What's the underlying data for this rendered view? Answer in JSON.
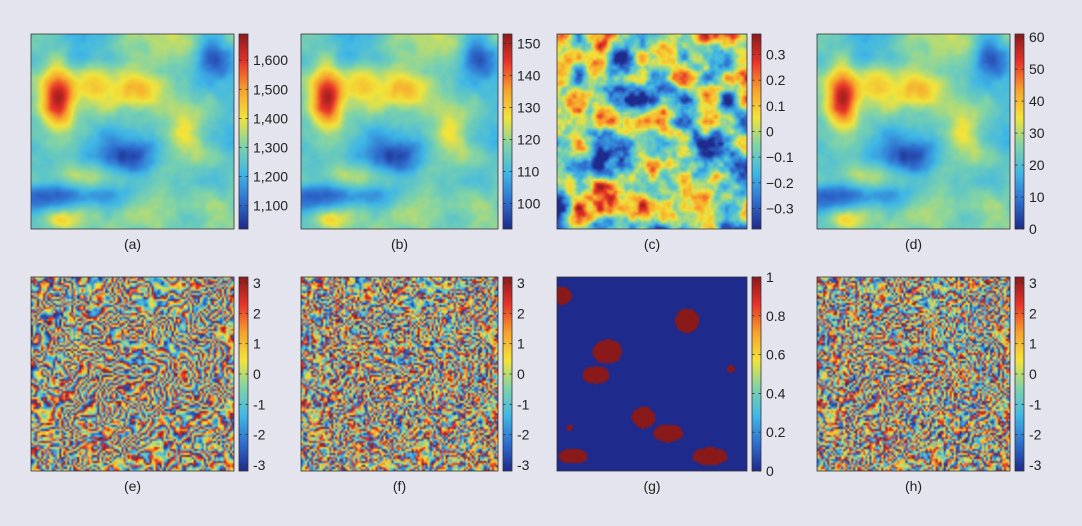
{
  "figure": {
    "colormap": "jet",
    "colormap_stops": [
      "#1e2a8c",
      "#2f6fd0",
      "#3fb7e6",
      "#7fd3a8",
      "#f2e43a",
      "#f7a12b",
      "#e8332a",
      "#8a1a1a"
    ]
  },
  "chart_data": [
    {
      "type": "heatmap",
      "label": "(a)",
      "pattern": "terrain",
      "colorbar": {
        "range": [
          1020,
          1690
        ],
        "ticks": [
          1100,
          1200,
          1300,
          1400,
          1500,
          1600
        ],
        "tick_labels": [
          "1,100",
          "1,200",
          "1,300",
          "1,400",
          "1,500",
          "1,600"
        ]
      }
    },
    {
      "type": "heatmap",
      "label": "(b)",
      "pattern": "terrain",
      "colorbar": {
        "range": [
          92,
          153
        ],
        "ticks": [
          100,
          110,
          120,
          130,
          140,
          150
        ],
        "tick_labels": [
          "100",
          "110",
          "120",
          "130",
          "140",
          "150"
        ]
      }
    },
    {
      "type": "heatmap",
      "label": "(c)",
      "pattern": "noise",
      "colorbar": {
        "range": [
          -0.38,
          0.38
        ],
        "ticks": [
          -0.3,
          -0.2,
          -0.1,
          0,
          0.1,
          0.2,
          0.3
        ],
        "tick_labels": [
          "−0.3",
          "−0.2",
          "−0.1",
          "0",
          "0.1",
          "0.2",
          "0.3"
        ]
      }
    },
    {
      "type": "heatmap",
      "label": "(d)",
      "pattern": "terrain",
      "colorbar": {
        "range": [
          0,
          61
        ],
        "ticks": [
          0,
          10,
          20,
          30,
          40,
          50,
          60
        ],
        "tick_labels": [
          "0",
          "10",
          "20",
          "30",
          "40",
          "50",
          "60"
        ]
      }
    },
    {
      "type": "heatmap",
      "label": "(e)",
      "pattern": "wrapped",
      "colorbar": {
        "range": [
          -3.2,
          3.2
        ],
        "ticks": [
          -3,
          -2,
          -1,
          0,
          1,
          2,
          3
        ],
        "tick_labels": [
          "-3",
          "-2",
          "-1",
          "0",
          "1",
          "2",
          "3"
        ]
      }
    },
    {
      "type": "heatmap",
      "label": "(f)",
      "pattern": "wrapped-noisy",
      "colorbar": {
        "range": [
          -3.2,
          3.2
        ],
        "ticks": [
          -3,
          -2,
          -1,
          0,
          1,
          2,
          3
        ],
        "tick_labels": [
          "-3",
          "-2",
          "-1",
          "0",
          "1",
          "2",
          "3"
        ]
      }
    },
    {
      "type": "heatmap",
      "label": "(g)",
      "pattern": "mask",
      "colorbar": {
        "range": [
          0,
          1
        ],
        "ticks": [
          0,
          0.2,
          0.4,
          0.6,
          0.8,
          1
        ],
        "tick_labels": [
          "0",
          "0.2",
          "0.4",
          "0.6",
          "0.8",
          "1"
        ]
      }
    },
    {
      "type": "heatmap",
      "label": "(h)",
      "pattern": "wrapped-noisy",
      "colorbar": {
        "range": [
          -3.2,
          3.2
        ],
        "ticks": [
          -3,
          -2,
          -1,
          0,
          1,
          2,
          3
        ],
        "tick_labels": [
          "-3",
          "-2",
          "-1",
          "0",
          "1",
          "2",
          "3"
        ]
      }
    }
  ]
}
